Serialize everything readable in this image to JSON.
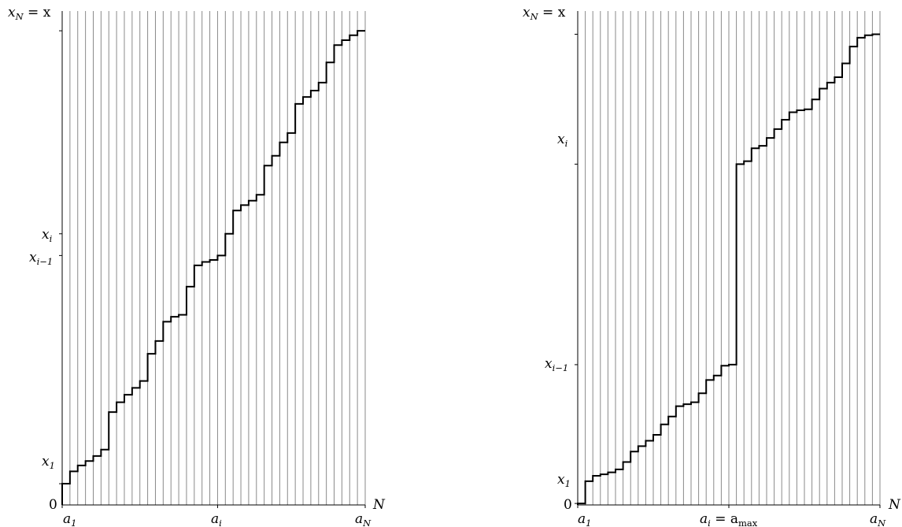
{
  "colors": {
    "background": "#ffffff",
    "grid": "#8a8a8a",
    "step": "#000000",
    "axis": "#000000"
  },
  "panels": [
    {
      "y_labels": {
        "xN": {
          "main": "x",
          "sub": "N",
          "rest": " = x"
        },
        "xi": {
          "main": "x",
          "sub": "i"
        },
        "xim1": {
          "main": "x",
          "sub": "i−1"
        },
        "x1": {
          "main": "x",
          "sub": "1"
        },
        "zero": "0"
      },
      "x_labels": {
        "a1": {
          "main": "a",
          "sub": "1"
        },
        "ai": {
          "main": "a",
          "sub": "i"
        },
        "aN": {
          "main": "a",
          "sub": "N"
        }
      },
      "axis_end_label": "N",
      "staircase": {
        "n_steps": 39,
        "y_range": [
          0,
          100
        ],
        "step_heights": [
          4.3,
          6.8,
          8.0,
          8.9,
          9.9,
          11.2,
          18.8,
          20.8,
          22.3,
          23.7,
          25.1,
          30.6,
          33.2,
          37.1,
          38.1,
          38.5,
          44.2,
          48.5,
          49.2,
          49.6,
          50.5,
          54.9,
          59.6,
          60.7,
          61.6,
          62.8,
          68.7,
          70.7,
          73.4,
          75.3,
          81.2,
          82.6,
          83.9,
          85.5,
          89.6,
          93.1,
          94.1,
          95.1,
          96.0
        ],
        "marks": {
          "x1": 4.3,
          "xim1": 50.5,
          "xi": 54.9,
          "ai_index": 20
        }
      }
    },
    {
      "y_labels": {
        "xN": {
          "main": "x",
          "sub": "N",
          "rest": " = x"
        },
        "xi": {
          "main": "x",
          "sub": "i"
        },
        "xim1": {
          "main": "x",
          "sub": "i−1"
        },
        "x1": {
          "main": "x",
          "sub": "1"
        },
        "zero": "0"
      },
      "x_labels": {
        "a1": {
          "main": "a",
          "sub": "1"
        },
        "ai": {
          "main": "a",
          "sub": "i",
          "rest": " = a",
          "rest_sub": "max"
        },
        "aN": {
          "main": "a",
          "sub": "N"
        }
      },
      "axis_end_label": "N",
      "staircase": {
        "n_steps": 40,
        "y_range": [
          0,
          100
        ],
        "step_heights": [
          0.3,
          4.8,
          5.9,
          6.2,
          6.6,
          7.2,
          8.7,
          10.8,
          11.9,
          13.0,
          14.2,
          16.3,
          17.9,
          20.0,
          20.4,
          20.8,
          22.6,
          25.3,
          26.2,
          28.2,
          28.4,
          69.0,
          69.6,
          72.2,
          72.7,
          74.3,
          76.1,
          78.0,
          79.5,
          79.9,
          80.1,
          82.1,
          84.3,
          85.5,
          86.6,
          89.4,
          92.8,
          94.6,
          95.1,
          95.3
        ],
        "marks": {
          "x1": 0.3,
          "xim1": 28.4,
          "xi": 69.0,
          "ai_index": 20
        }
      }
    }
  ]
}
